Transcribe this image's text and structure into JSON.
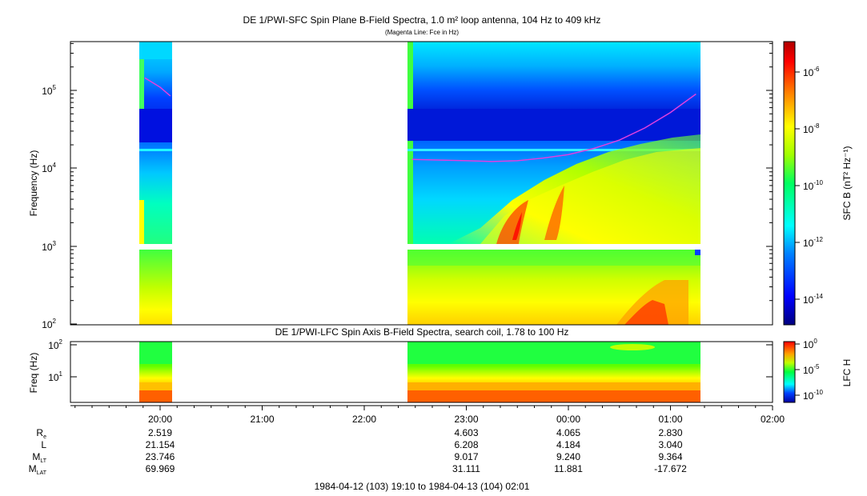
{
  "title": "DE 1/PWI-SFC  Spin Plane B-Field Spectra, 1.0 m² loop antenna, 104 Hz to 409 kHz",
  "subtitle": "(Magenta Line: Fce in Hz)",
  "colors": {
    "fce_line": "#e040e0",
    "background": "#ffffff",
    "colormap": [
      "#00007f",
      "#0000ff",
      "#0080ff",
      "#00ffff",
      "#00ff80",
      "#80ff00",
      "#ffff00",
      "#ff8000",
      "#ff0000",
      "#7f0000"
    ]
  },
  "chart_data": [
    {
      "type": "heatmap",
      "title": "DE 1/PWI-SFC  Spin Plane B-Field Spectra, 1.0 m² loop antenna, 104 Hz to 409 kHz",
      "subtitle": "(Magenta Line: Fce in Hz)",
      "xlabel": "",
      "ylabel": "Frequency (Hz)",
      "y_scale": "log",
      "ylim": [
        100,
        409000
      ],
      "y_ticks": [
        {
          "value": 100,
          "label": "10",
          "exp": "2"
        },
        {
          "value": 1000,
          "label": "10",
          "exp": "3"
        },
        {
          "value": 10000,
          "label": "10",
          "exp": "4"
        },
        {
          "value": 100000,
          "label": "10",
          "exp": "5"
        }
      ],
      "xlim": [
        "1984-04-12 19:10",
        "1984-04-13 02:01"
      ],
      "data_intervals": [
        [
          "1984-04-12 19:50",
          "1984-04-12 20:10"
        ],
        [
          "1984-04-12 22:28",
          "1984-04-13 01:19"
        ]
      ],
      "fce_line": [
        {
          "x": "1984-04-12 19:51",
          "y": 145000
        },
        {
          "x": "1984-04-12 20:00",
          "y": 110000
        },
        {
          "x": "1984-04-12 20:06",
          "y": 85000
        },
        {
          "x": "1984-04-12 22:28",
          "y": 13000
        },
        {
          "x": "1984-04-12 23:00",
          "y": 12500
        },
        {
          "x": "1984-04-12 23:15",
          "y": 12200
        },
        {
          "x": "1984-04-12 23:30",
          "y": 12500
        },
        {
          "x": "1984-04-12 23:45",
          "y": 13500
        },
        {
          "x": "1984-04-13 00:00",
          "y": 15000
        },
        {
          "x": "1984-04-13 00:15",
          "y": 18000
        },
        {
          "x": "1984-04-13 00:30",
          "y": 23000
        },
        {
          "x": "1984-04-13 00:45",
          "y": 33000
        },
        {
          "x": "1984-04-13 01:00",
          "y": 52000
        },
        {
          "x": "1984-04-13 01:15",
          "y": 90000
        }
      ],
      "colorbar": {
        "label": "SFC B (nT² Hz⁻¹)",
        "scale": "log",
        "range": [
          1e-15,
          1e-05
        ],
        "ticks": [
          {
            "label": "10",
            "exp": "-6"
          },
          {
            "label": "10",
            "exp": "-8"
          },
          {
            "label": "10",
            "exp": "-10"
          },
          {
            "label": "10",
            "exp": "-12"
          },
          {
            "label": "10",
            "exp": "-14"
          }
        ]
      },
      "grid": false
    },
    {
      "type": "heatmap",
      "title": "DE 1/PWI-LFC  Spin Axis B-Field Spectra, search coil, 1.78 to 100 Hz",
      "ylabel": "Freq (Hz)",
      "y_scale": "log",
      "ylim": [
        1.78,
        100
      ],
      "y_ticks": [
        {
          "value": 10,
          "label": "10",
          "exp": "1"
        },
        {
          "value": 100,
          "label": "10",
          "exp": "2"
        }
      ],
      "data_intervals": [
        [
          "1984-04-12 19:50",
          "1984-04-12 20:10"
        ],
        [
          "1984-04-12 22:28",
          "1984-04-13 01:19"
        ]
      ],
      "colorbar": {
        "label": "LFC H",
        "scale": "log",
        "ticks": [
          {
            "label": "10",
            "exp": "0"
          },
          {
            "label": "10",
            "exp": "-5"
          },
          {
            "label": "10",
            "exp": "-10"
          }
        ]
      },
      "grid": false
    }
  ],
  "time_axis": {
    "ticks": [
      "20:00",
      "21:00",
      "22:00",
      "23:00",
      "00:00",
      "01:00",
      "02:00"
    ],
    "range_label": "1984-04-12 (103) 19:10 to 1984-04-13 (104) 02:01"
  },
  "ephemeris": {
    "rows": [
      {
        "label": "R",
        "sub": "e",
        "values": [
          "2.519",
          "",
          "",
          "4.603",
          "4.065",
          "2.830"
        ]
      },
      {
        "label": "L",
        "sub": "",
        "values": [
          "21.154",
          "",
          "",
          "6.208",
          "4.184",
          "3.040"
        ]
      },
      {
        "label": "M",
        "sub": "LT",
        "values": [
          "23.746",
          "",
          "",
          "9.017",
          "9.240",
          "9.364"
        ]
      },
      {
        "label": "M",
        "sub": "LAT",
        "values": [
          "69.969",
          "",
          "",
          "31.111",
          "11.881",
          "-17.672"
        ]
      }
    ]
  }
}
